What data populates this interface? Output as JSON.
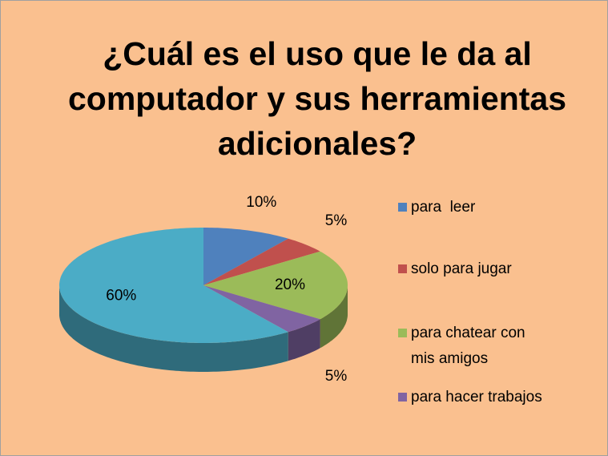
{
  "chart_data": {
    "type": "pie",
    "title": "¿Cuál es el uso que le da al computador y sus herramientas adicionales?",
    "categories": [
      "para  leer",
      "solo para jugar",
      "para chatear con mis amigos",
      "para hacer trabajos",
      null
    ],
    "values": [
      10,
      5,
      20,
      5,
      60
    ],
    "value_labels": [
      "10%",
      "5%",
      "20%",
      "5%",
      "60%"
    ],
    "colors": [
      "#4f81bd",
      "#c0504d",
      "#9bbb59",
      "#8064a2",
      "#4bacc6"
    ],
    "legend": "right"
  }
}
